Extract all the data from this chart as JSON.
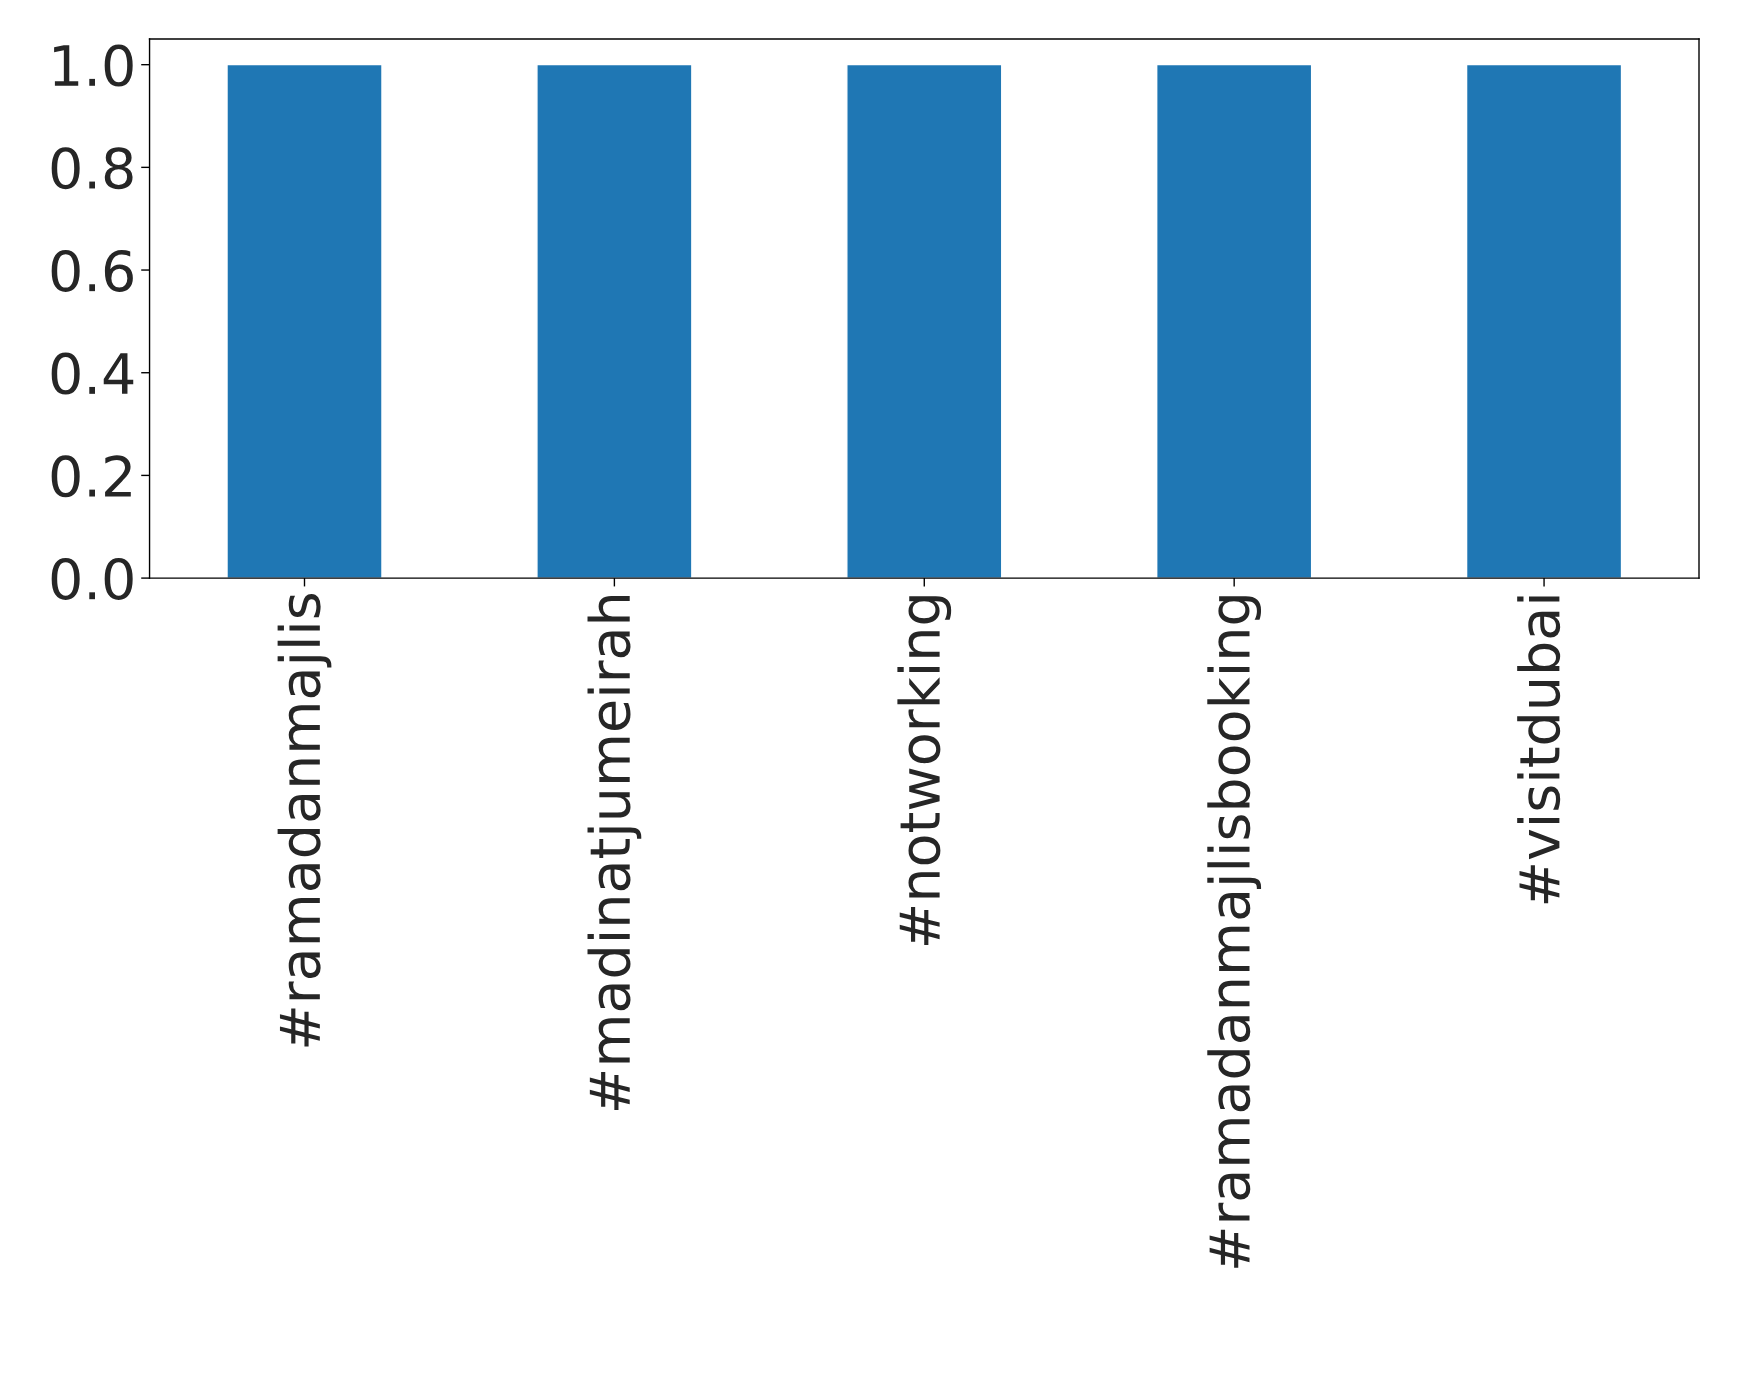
{
  "chart_data": {
    "type": "bar",
    "categories": [
      "#ramadanmajlis",
      "#madinatjumeirah",
      "#notworking",
      "#ramadanmajlisbooking",
      "#visitdubai"
    ],
    "values": [
      1.0,
      1.0,
      1.0,
      1.0,
      1.0
    ],
    "color": "#1f77b4",
    "ylim": [
      0,
      1.05
    ],
    "yticks": [
      {
        "value": 0,
        "label": "0.0"
      },
      {
        "value": 0.2,
        "label": "0.2"
      },
      {
        "value": 0.4,
        "label": "0.4"
      },
      {
        "value": 0.6,
        "label": "0.6"
      },
      {
        "value": 0.8,
        "label": "0.8"
      },
      {
        "value": 1.0,
        "label": "1.0"
      }
    ],
    "grid": false,
    "legend": false
  }
}
